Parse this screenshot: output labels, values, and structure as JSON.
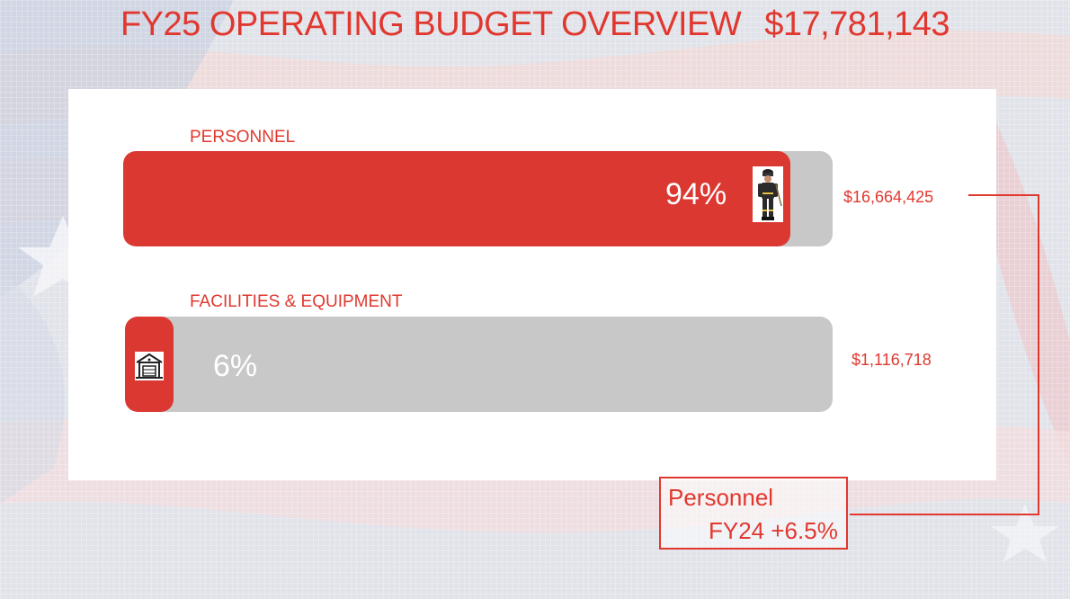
{
  "header": {
    "title": "FY25 OPERATING BUDGET OVERVIEW",
    "total": "$17,781,143"
  },
  "colors": {
    "accent": "#e0382f",
    "bar_fill": "#dc3832",
    "bar_track": "#c8c8c8"
  },
  "chart_data": {
    "type": "bar",
    "orientation": "horizontal",
    "categories": [
      "PERSONNEL",
      "FACILITIES & EQUIPMENT"
    ],
    "values": [
      16664425,
      1116718
    ],
    "percentages": [
      94,
      6
    ],
    "percent_labels": [
      "94%",
      "6%"
    ],
    "amount_labels": [
      "$16,664,425",
      "$1,116,718"
    ],
    "icons": [
      "firefighter-icon",
      "fire-station-icon"
    ]
  },
  "callout": {
    "line1": "Personnel",
    "line2": "FY24 +6.5%"
  }
}
